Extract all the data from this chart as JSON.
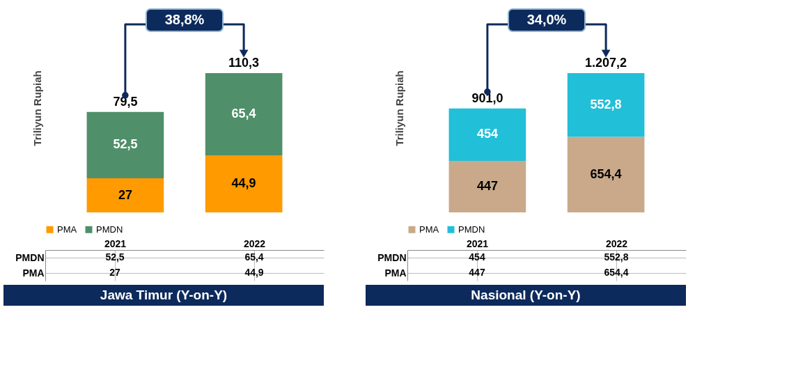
{
  "chart_data": [
    {
      "type": "bar",
      "stacked": true,
      "title": "Jawa Timur (Y-on-Y)",
      "ylabel": "Triliyun Rupiah",
      "categories": [
        "2021",
        "2022"
      ],
      "legend": "bottom",
      "series": [
        {
          "name": "PMA",
          "color": "#ff9a00",
          "values": [
            27,
            44.9
          ],
          "value_labels": [
            "27",
            "44,9"
          ]
        },
        {
          "name": "PMDN",
          "color": "#4f8f6a",
          "values": [
            52.5,
            65.4
          ],
          "value_labels": [
            "52,5",
            "65,4"
          ]
        }
      ],
      "totals": [
        "79,5",
        "110,3"
      ],
      "annotations": [
        "38,8%"
      ]
    },
    {
      "type": "bar",
      "stacked": true,
      "title": "Nasional (Y-on-Y)",
      "ylabel": "Triliyun Rupiah",
      "categories": [
        "2021",
        "2022"
      ],
      "legend": "bottom",
      "series": [
        {
          "name": "PMA",
          "color": "#c9a98a",
          "values": [
            447,
            654.4
          ],
          "value_labels": [
            "447",
            "654,4"
          ]
        },
        {
          "name": "PMDN",
          "color": "#22bfd8",
          "values": [
            454,
            552.8
          ],
          "value_labels": [
            "454",
            "552,8"
          ]
        }
      ],
      "totals": [
        "901,0",
        "1.207,2"
      ],
      "annotations": [
        "34,0%"
      ]
    }
  ]
}
